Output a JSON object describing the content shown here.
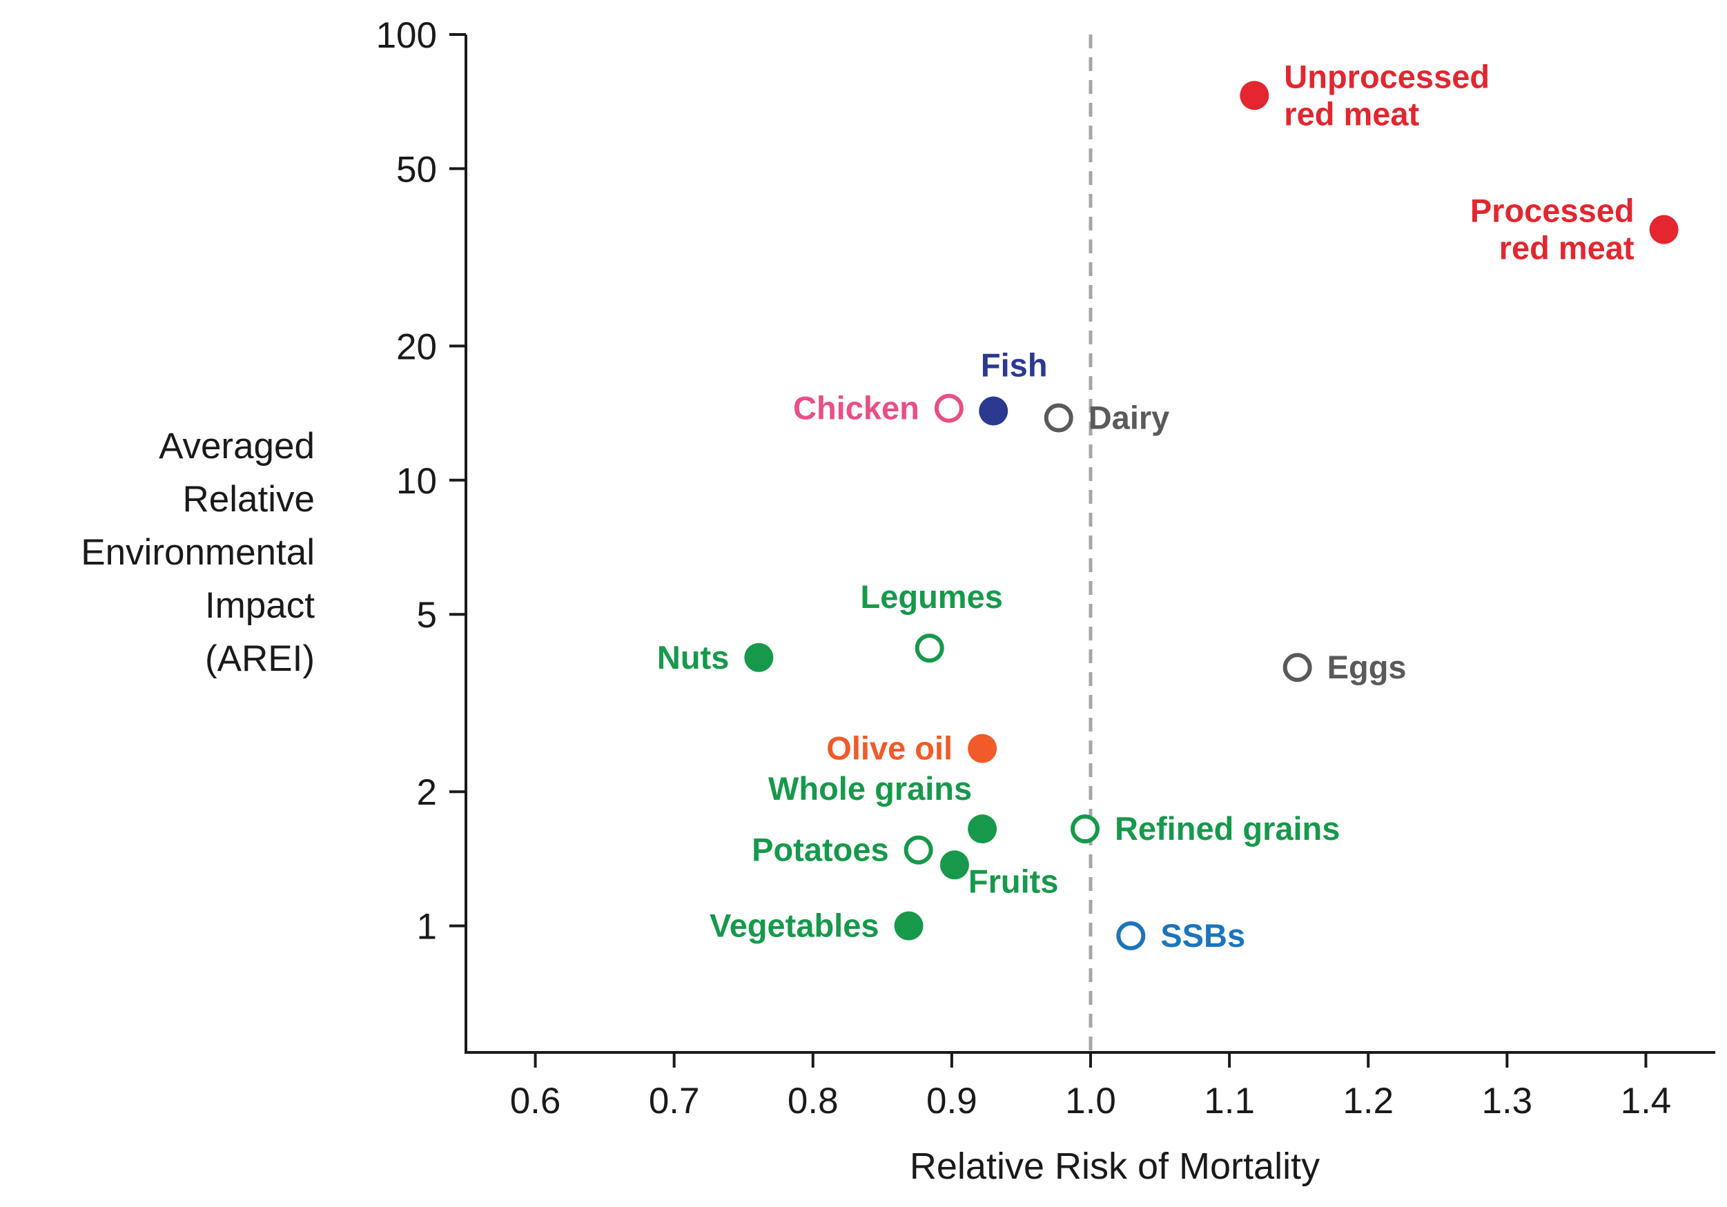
{
  "chart_data": {
    "type": "scatter",
    "xlabel": "Relative Risk of Mortality",
    "ylabel_lines": [
      "Averaged",
      "Relative",
      "Environmental",
      "Impact",
      "(AREI)"
    ],
    "xlim": [
      0.55,
      1.45
    ],
    "ylim": [
      0.52,
      100
    ],
    "yscale": "log",
    "x_ticks": [
      "0.6",
      "0.7",
      "0.8",
      "0.9",
      "1.0",
      "1.1",
      "1.2",
      "1.3",
      "1.4"
    ],
    "y_ticks": [
      "1",
      "2",
      "5",
      "10",
      "20",
      "50",
      "100"
    ],
    "reference_line": {
      "x": 1.0,
      "style": "dashed",
      "color": "#a6a6a6"
    },
    "grid": false,
    "points": [
      {
        "name": "Unprocessed red meat",
        "label_lines": [
          "Unprocessed",
          "red meat"
        ],
        "x": 1.118,
        "y": 73,
        "filled": true,
        "color": "#e3262f",
        "label_side": "right"
      },
      {
        "name": "Processed red meat",
        "label_lines": [
          "Processed",
          "red meat"
        ],
        "x": 1.413,
        "y": 36.5,
        "filled": true,
        "color": "#e3262f",
        "label_side": "left"
      },
      {
        "name": "Fish",
        "label_lines": [
          "Fish"
        ],
        "x": 0.93,
        "y": 14.3,
        "filled": true,
        "color": "#2b3990",
        "label_side": "above"
      },
      {
        "name": "Chicken",
        "label_lines": [
          "Chicken"
        ],
        "x": 0.898,
        "y": 14.5,
        "filled": false,
        "color": "#e94e87",
        "label_side": "left"
      },
      {
        "name": "Dairy",
        "label_lines": [
          "Dairy"
        ],
        "x": 0.977,
        "y": 13.8,
        "filled": false,
        "color": "#5a5a5a",
        "label_side": "right"
      },
      {
        "name": "Legumes",
        "label_lines": [
          "Legumes"
        ],
        "x": 0.884,
        "y": 4.2,
        "filled": false,
        "color": "#16994b",
        "label_side": "above"
      },
      {
        "name": "Nuts",
        "label_lines": [
          "Nuts"
        ],
        "x": 0.761,
        "y": 4.0,
        "filled": true,
        "color": "#16994b",
        "label_side": "left"
      },
      {
        "name": "Eggs",
        "label_lines": [
          "Eggs"
        ],
        "x": 1.149,
        "y": 3.8,
        "filled": false,
        "color": "#5a5a5a",
        "label_side": "right"
      },
      {
        "name": "Olive oil",
        "label_lines": [
          "Olive oil"
        ],
        "x": 0.922,
        "y": 2.5,
        "filled": true,
        "color": "#f15a29",
        "label_side": "left"
      },
      {
        "name": "Whole grains",
        "label_lines": [
          "Whole grains"
        ],
        "x": 0.922,
        "y": 1.65,
        "filled": true,
        "color": "#16994b",
        "label_side": "above-left"
      },
      {
        "name": "Refined grains",
        "label_lines": [
          "Refined grains"
        ],
        "x": 0.996,
        "y": 1.65,
        "filled": false,
        "color": "#16994b",
        "label_side": "right"
      },
      {
        "name": "Potatoes",
        "label_lines": [
          "Potatoes"
        ],
        "x": 0.876,
        "y": 1.48,
        "filled": false,
        "color": "#16994b",
        "label_side": "left"
      },
      {
        "name": "Fruits",
        "label_lines": [
          "Fruits"
        ],
        "x": 0.902,
        "y": 1.37,
        "filled": true,
        "color": "#16994b",
        "label_side": "below-right"
      },
      {
        "name": "Vegetables",
        "label_lines": [
          "Vegetables"
        ],
        "x": 0.869,
        "y": 1.0,
        "filled": true,
        "color": "#16994b",
        "label_side": "left"
      },
      {
        "name": "SSBs",
        "label_lines": [
          "SSBs"
        ],
        "x": 1.029,
        "y": 0.95,
        "filled": false,
        "color": "#1b75bc",
        "label_side": "right"
      }
    ]
  }
}
